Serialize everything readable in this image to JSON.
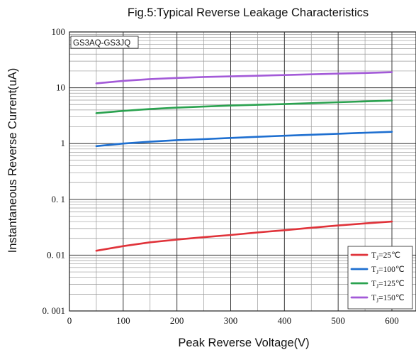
{
  "chart_data": {
    "type": "line",
    "title": "Fig.5:Typical Reverse Leakage Characteristics",
    "xlabel": "Peak Reverse Voltage(V)",
    "ylabel": "Instantaneous Reverse Current(uA)",
    "part_label": "GS3AQ-GS3JQ",
    "x_scale": "linear",
    "y_scale": "log",
    "xlim": [
      0,
      600
    ],
    "ylim": [
      0.001,
      100
    ],
    "x_ticks": [
      "0",
      "100",
      "200",
      "300",
      "400",
      "500",
      "600"
    ],
    "y_ticks": [
      "0. 001",
      "0. 01",
      "0. 1",
      "1",
      "10",
      "100"
    ],
    "grid": true,
    "legend_position": "bottom-right",
    "x": [
      50,
      100,
      150,
      200,
      250,
      300,
      350,
      400,
      450,
      500,
      550,
      600
    ],
    "series": [
      {
        "name": "TJ=25℃",
        "name_main": "T",
        "name_sub": "J",
        "name_rest": "=25℃",
        "color": "#e0333a",
        "values": [
          0.012,
          0.0145,
          0.017,
          0.019,
          0.021,
          0.023,
          0.0255,
          0.028,
          0.031,
          0.034,
          0.037,
          0.04
        ]
      },
      {
        "name": "TJ=100℃",
        "name_main": "T",
        "name_sub": "J",
        "name_rest": "=100℃",
        "color": "#1e6fd0",
        "values": [
          0.9,
          1.0,
          1.08,
          1.15,
          1.2,
          1.26,
          1.32,
          1.38,
          1.44,
          1.5,
          1.56,
          1.62
        ]
      },
      {
        "name": "TJ=125℃",
        "name_main": "T",
        "name_sub": "J",
        "name_rest": "=125℃",
        "color": "#2aa24f",
        "values": [
          3.5,
          3.85,
          4.15,
          4.4,
          4.6,
          4.8,
          4.95,
          5.1,
          5.3,
          5.5,
          5.7,
          5.9
        ]
      },
      {
        "name": "TJ=150℃",
        "name_main": "T",
        "name_sub": "J",
        "name_rest": "=150℃",
        "color": "#a35ad8",
        "values": [
          12,
          13.3,
          14.3,
          15.0,
          15.6,
          16.0,
          16.4,
          16.9,
          17.4,
          17.9,
          18.4,
          19.0
        ]
      }
    ]
  }
}
